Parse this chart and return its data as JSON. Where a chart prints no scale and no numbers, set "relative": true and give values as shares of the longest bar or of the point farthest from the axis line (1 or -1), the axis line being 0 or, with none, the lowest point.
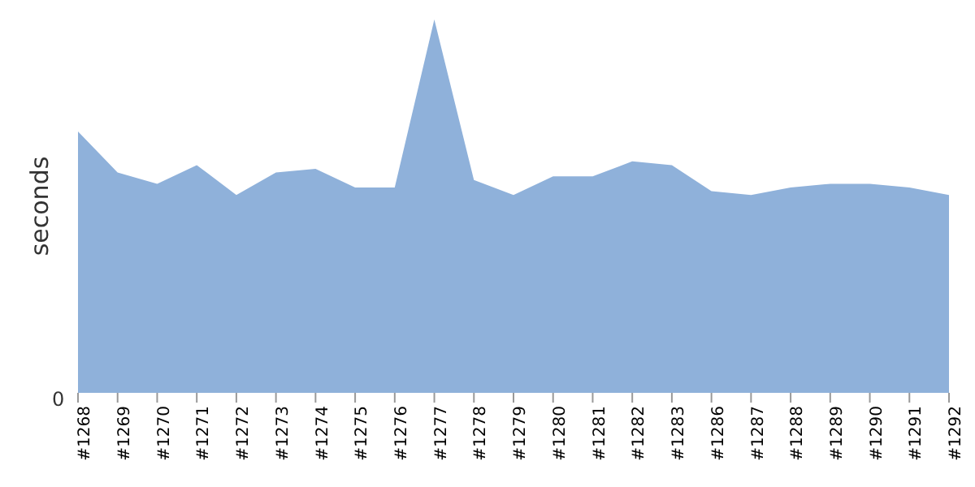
{
  "chart_data": {
    "type": "area",
    "ylabel": "seconds",
    "relative": true,
    "annotations": [
      "0"
    ],
    "categories": [
      "#1268",
      "#1269",
      "#1270",
      "#1271",
      "#1272",
      "#1273",
      "#1274",
      "#1275",
      "#1276",
      "#1277",
      "#1278",
      "#1279",
      "#1280",
      "#1281",
      "#1282",
      "#1283",
      "#1286",
      "#1287",
      "#1288",
      "#1289",
      "#1290",
      "#1291",
      "#1292"
    ],
    "series": [
      {
        "color": "#8fb1da",
        "values": [
          0.7,
          0.59,
          0.56,
          0.61,
          0.53,
          0.59,
          0.6,
          0.55,
          0.55,
          1,
          0.57,
          0.53,
          0.58,
          0.58,
          0.62,
          0.61,
          0.54,
          0.53,
          0.55,
          0.56,
          0.56,
          0.55,
          0.53
        ]
      }
    ],
    "grid": false,
    "legend": false
  }
}
